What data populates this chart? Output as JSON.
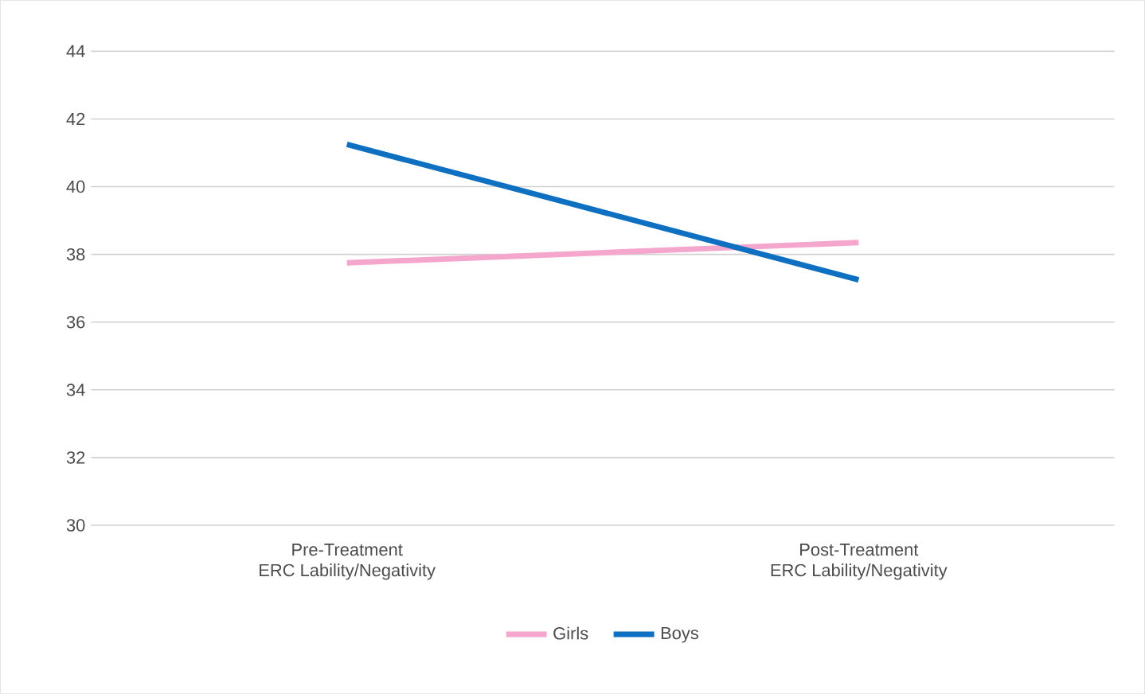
{
  "chart_data": {
    "type": "line",
    "categories": [
      "Pre-Treatment\nERC Lability/Negativity",
      "Post-Treatment\nERC Lability/Negativity"
    ],
    "series": [
      {
        "name": "Girls",
        "color": "#f4a6cc",
        "values": [
          37.75,
          38.35
        ]
      },
      {
        "name": "Boys",
        "color": "#0f6fc0",
        "values": [
          41.25,
          37.25
        ]
      }
    ],
    "ylim": [
      30,
      44
    ],
    "yticks": [
      30,
      32,
      34,
      36,
      38,
      40,
      42,
      44
    ],
    "grid": "y",
    "legend": "bottom",
    "marker": "none"
  }
}
